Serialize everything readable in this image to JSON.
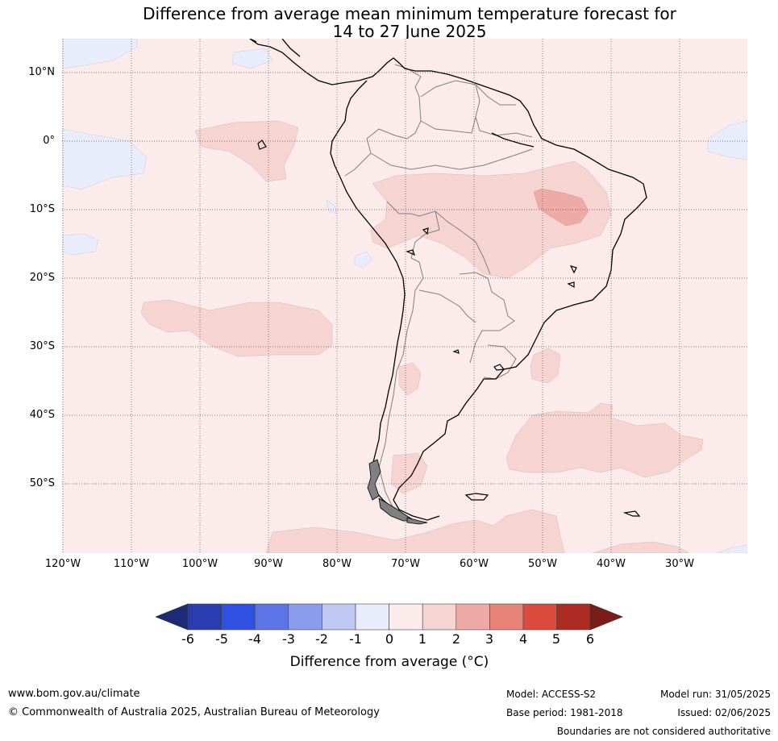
{
  "title": {
    "line1": "Difference from average mean minimum temperature forecast for",
    "line2": "14 to 27 June 2025"
  },
  "map": {
    "lat_labels": [
      "10°N",
      "0°",
      "10°S",
      "20°S",
      "30°S",
      "40°S",
      "50°S"
    ],
    "lon_labels": [
      "120°W",
      "110°W",
      "100°W",
      "90°W",
      "80°W",
      "70°W",
      "60°W",
      "50°W",
      "40°W",
      "30°W"
    ],
    "background_color": "#fbebea",
    "land_outline_color": "#000000",
    "border_color": "#808080",
    "gridline_style": "dotted"
  },
  "colorbar": {
    "ticks": [
      "-6",
      "-5",
      "-4",
      "-3",
      "-2",
      "-1",
      "0",
      "1",
      "2",
      "3",
      "4",
      "5",
      "6"
    ],
    "colors": [
      "#1c2a78",
      "#2a3cb0",
      "#3050e2",
      "#5c74e6",
      "#8a9cec",
      "#c0c8f4",
      "#e8ecfb",
      "#fbebea",
      "#f5d4d2",
      "#edaaa6",
      "#e8837a",
      "#dc4a3e",
      "#ab2a22",
      "#7a1c18"
    ],
    "title": "Difference from average (°C)"
  },
  "footer": {
    "website": "www.bom.gov.au/climate",
    "copyright": "© Commonwealth of Australia 2025, Australian Bureau of Meteorology",
    "model": "Model: ACCESS-S2",
    "base_period": "Base period: 1981-2018",
    "model_run": "Model run: 31/05/2025",
    "issued": "Issued: 02/06/2025",
    "disclaimer": "Boundaries are not considered authoritative"
  }
}
